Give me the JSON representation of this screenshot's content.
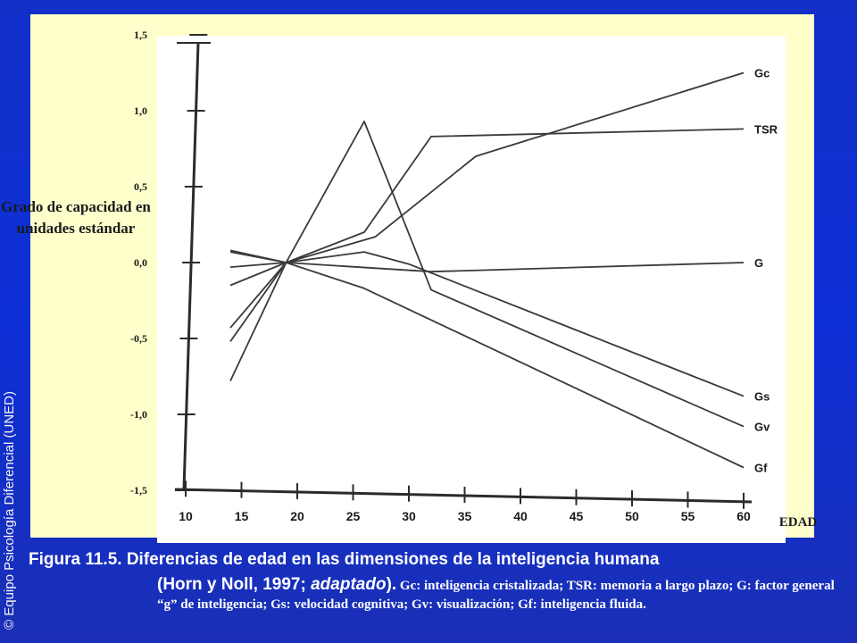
{
  "chart_data": {
    "type": "line",
    "ylabel": "Grado de capacidad en unidades estándar",
    "xlabel": "EDAD",
    "x_ticks": [
      "10",
      "15",
      "20",
      "25",
      "30",
      "35",
      "40",
      "45",
      "50",
      "55",
      "60"
    ],
    "y_ticks": [
      "1,5",
      "1,0",
      "0,5",
      "0,0",
      "-0,5",
      "-1,0",
      "-1,5"
    ],
    "xlim": [
      10,
      60
    ],
    "ylim": [
      -1.5,
      1.5
    ],
    "grid": false,
    "legend": "labels at line ends",
    "series": [
      {
        "name": "Gc",
        "color": "#3a3a3a",
        "x": [
          14,
          19,
          27,
          36,
          60
        ],
        "y": [
          -0.43,
          0.0,
          0.17,
          0.7,
          1.25
        ]
      },
      {
        "name": "TSR",
        "color": "#3a3a3a",
        "x": [
          14,
          19,
          26,
          32,
          60
        ],
        "y": [
          -0.52,
          0.0,
          0.2,
          0.83,
          0.88
        ]
      },
      {
        "name": "G",
        "color": "#3a3a3a",
        "x": [
          14,
          19,
          32,
          60
        ],
        "y": [
          -0.03,
          0.0,
          -0.06,
          0.0
        ]
      },
      {
        "name": "Gs",
        "color": "#3a3a3a",
        "x": [
          14,
          19,
          26,
          30,
          60
        ],
        "y": [
          0.07,
          0.0,
          0.07,
          -0.01,
          -0.88
        ]
      },
      {
        "name": "Gv",
        "color": "#3a3a3a",
        "x": [
          14,
          19,
          26,
          32,
          60
        ],
        "y": [
          -0.15,
          0.0,
          0.93,
          -0.18,
          -1.08
        ]
      },
      {
        "name": "Gf",
        "color": "#3a3a3a",
        "x": [
          14,
          19,
          26,
          60
        ],
        "y": [
          0.08,
          0.0,
          -0.17,
          -1.35
        ]
      }
    ],
    "extra_line": {
      "color": "#3a3a3a",
      "x": [
        14,
        19
      ],
      "y": [
        -0.78,
        0.0
      ]
    }
  },
  "side_text": "© Equipo Psicología Diferencial (UNED)",
  "caption": {
    "line1": "Figura 11.5. Diferencias de edad en las dimensiones de la inteligencia humana",
    "ref_prefix": "(Horn y Noll, 1997; ",
    "ref_italic": "adaptado",
    "ref_suffix": ").",
    "legend_text": "Gc: inteligencia cristalizada;  TSR: memoria a largo plazo; G: factor general “g” de inteligencia; Gs: velocidad cognitiva; Gv: visualización; Gf: inteligencia fluida."
  }
}
